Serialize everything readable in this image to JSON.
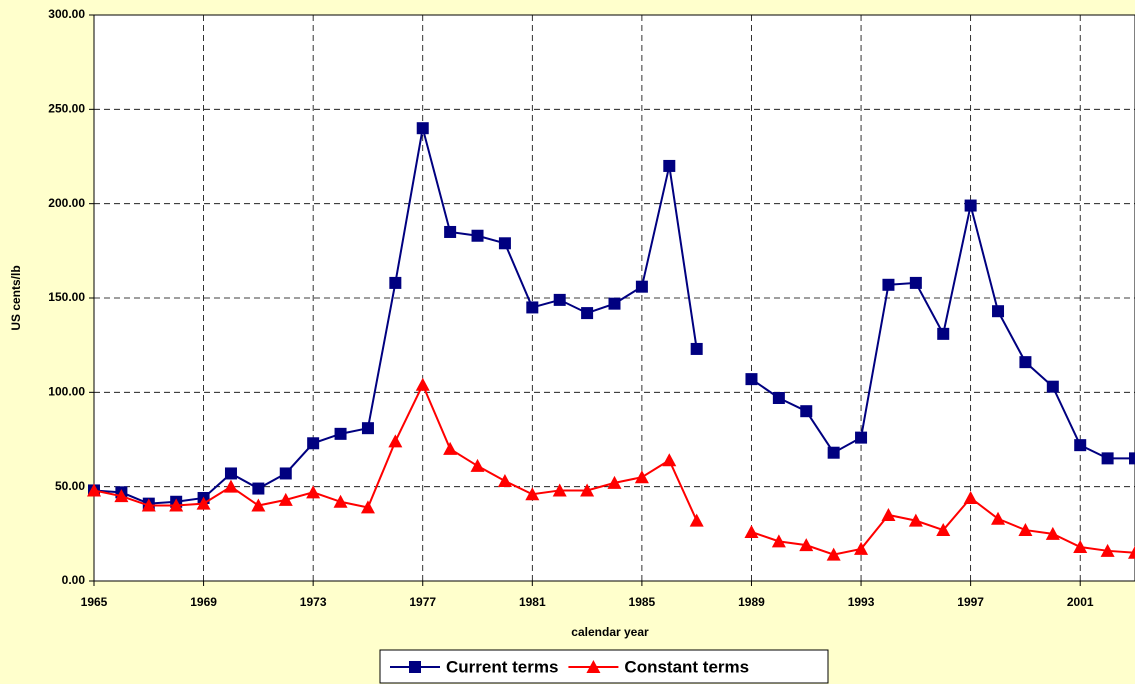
{
  "chart_data": {
    "type": "line",
    "y_label": "US cents/lb",
    "x_label": "calendar year",
    "x": [
      1965,
      1966,
      1967,
      1968,
      1969,
      1970,
      1971,
      1972,
      1973,
      1974,
      1975,
      1976,
      1977,
      1978,
      1979,
      1980,
      1981,
      1982,
      1983,
      1984,
      1985,
      1986,
      1987,
      1988,
      1989,
      1990,
      1991,
      1992,
      1993,
      1994,
      1995,
      1996,
      1997,
      1998,
      1999,
      2000,
      2001,
      2002,
      2003
    ],
    "series": [
      {
        "name": "Current terms",
        "color": "#000080",
        "marker": "square",
        "values": [
          48,
          47,
          41,
          42,
          44,
          57,
          49,
          57,
          73,
          78,
          81,
          158,
          240,
          185,
          183,
          179,
          145,
          149,
          142,
          147,
          156,
          220,
          123,
          null,
          107,
          97,
          90,
          68,
          76,
          157,
          158,
          131,
          199,
          143,
          116,
          103,
          72,
          65,
          65
        ]
      },
      {
        "name": "Constant terms",
        "color": "#ff0000",
        "marker": "triangle",
        "values": [
          48,
          45,
          40,
          40,
          41,
          50,
          40,
          43,
          47,
          42,
          39,
          74,
          104,
          70,
          61,
          53,
          46,
          48,
          48,
          52,
          55,
          64,
          32,
          null,
          26,
          21,
          19,
          14,
          17,
          35,
          32,
          27,
          44,
          33,
          27,
          25,
          18,
          16,
          15
        ]
      }
    ],
    "xlim": [
      1965,
      2003
    ],
    "ylim": [
      0,
      300
    ],
    "xticks": [
      1965,
      1969,
      1973,
      1977,
      1981,
      1985,
      1989,
      1993,
      1997,
      2001
    ],
    "yticks": [
      {
        "value": 0,
        "label": "0.00"
      },
      {
        "value": 50,
        "label": "50.00"
      },
      {
        "value": 100,
        "label": "100.00"
      },
      {
        "value": 150,
        "label": "150.00"
      },
      {
        "value": 200,
        "label": "200.00"
      },
      {
        "value": 250,
        "label": "250.00"
      },
      {
        "value": 300,
        "label": "300.00"
      }
    ],
    "grid": true,
    "legend": "bottom"
  }
}
